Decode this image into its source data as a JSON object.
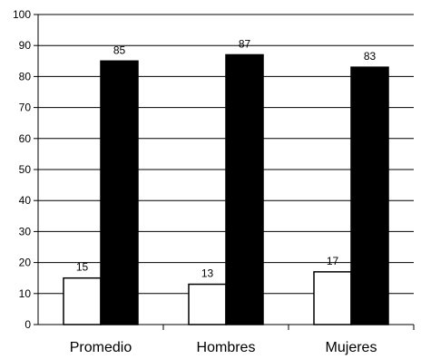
{
  "chart_data": {
    "type": "bar",
    "categories": [
      "Promedio",
      "Hombres",
      "Mujeres"
    ],
    "series": [
      {
        "values": [
          15,
          13,
          17
        ],
        "color": "#ffffff"
      },
      {
        "values": [
          85,
          87,
          83
        ],
        "color": "#000000"
      }
    ],
    "ylim": [
      0,
      100
    ],
    "yticks": [
      0,
      10,
      20,
      30,
      40,
      50,
      60,
      70,
      80,
      90,
      100
    ],
    "grid": true,
    "data_labels": true,
    "title": "",
    "xlabel": "",
    "ylabel": ""
  }
}
